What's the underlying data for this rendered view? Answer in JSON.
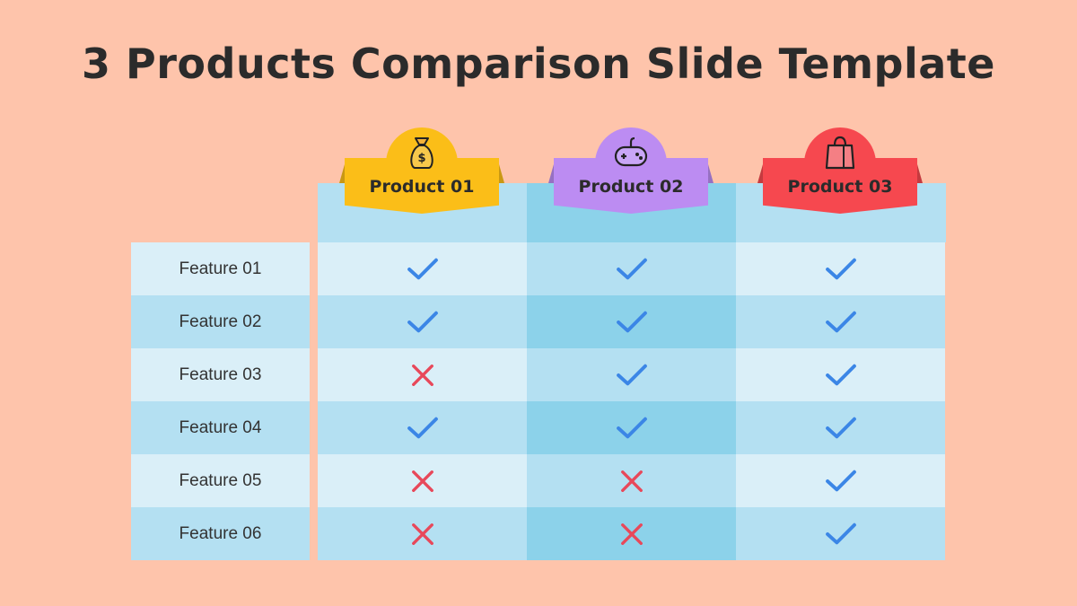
{
  "title": "3 Products Comparison Slide Template",
  "products": [
    {
      "name": "Product 01",
      "icon": "money-bag-icon",
      "color": "#FBBE18"
    },
    {
      "name": "Product 02",
      "icon": "gamepad-icon",
      "color": "#BC8CF2"
    },
    {
      "name": "Product 03",
      "icon": "shopping-bag-icon",
      "color": "#F6484F"
    }
  ],
  "features": [
    {
      "label": "Feature 01",
      "values": [
        true,
        true,
        true
      ]
    },
    {
      "label": "Feature 02",
      "values": [
        true,
        true,
        true
      ]
    },
    {
      "label": "Feature 03",
      "values": [
        false,
        true,
        true
      ]
    },
    {
      "label": "Feature 04",
      "values": [
        true,
        true,
        true
      ]
    },
    {
      "label": "Feature 05",
      "values": [
        false,
        false,
        true
      ]
    },
    {
      "label": "Feature 06",
      "values": [
        false,
        false,
        true
      ]
    }
  ],
  "colors": {
    "background": "#FEC4AB",
    "check": "#3B86E6",
    "cross": "#E8485A",
    "row_light": "#DAEFF8",
    "row_mid": "#B4E0F2",
    "col_highlight_light": "#B4E0F2",
    "col_highlight_dark": "#8CD2EA"
  }
}
